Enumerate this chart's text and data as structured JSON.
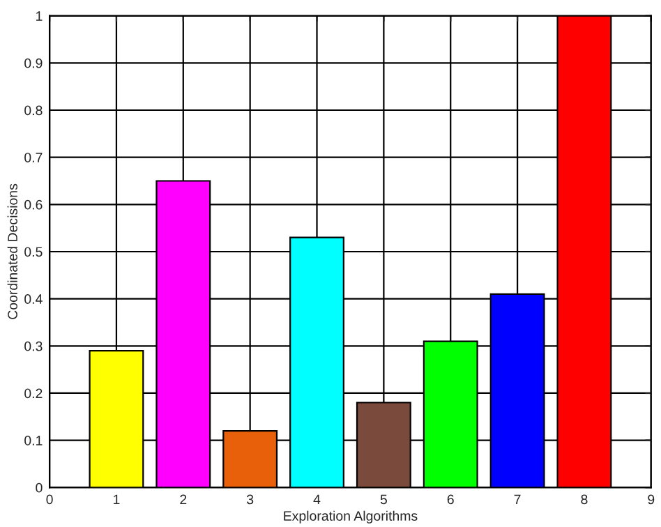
{
  "chart_data": {
    "type": "bar",
    "xlabel": "Exploration Algorithms",
    "ylabel": "Coordinated Decisions",
    "x": [
      1,
      2,
      3,
      4,
      5,
      6,
      7,
      8
    ],
    "values": [
      0.29,
      0.65,
      0.12,
      0.53,
      0.18,
      0.31,
      0.41,
      1.0
    ],
    "colors": [
      "#ffff00",
      "#ff00ff",
      "#e8600a",
      "#00ffff",
      "#7a4a3c",
      "#00ff00",
      "#0000ff",
      "#ff0000"
    ],
    "xlim": [
      0,
      9
    ],
    "xticks": [
      0,
      1,
      2,
      3,
      4,
      5,
      6,
      7,
      8,
      9
    ],
    "ylim": [
      0,
      1
    ],
    "yticks": [
      0,
      0.1,
      0.2,
      0.3,
      0.4,
      0.5,
      0.6,
      0.7,
      0.8,
      0.9,
      1
    ],
    "grid": true
  }
}
